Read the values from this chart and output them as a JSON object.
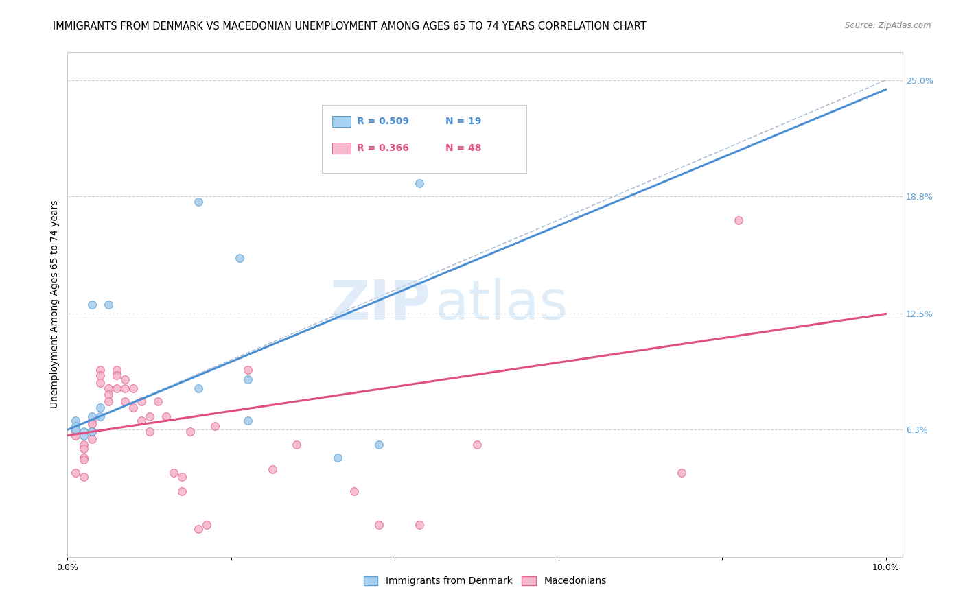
{
  "title": "IMMIGRANTS FROM DENMARK VS MACEDONIAN UNEMPLOYMENT AMONG AGES 65 TO 74 YEARS CORRELATION CHART",
  "source": "Source: ZipAtlas.com",
  "ylabel": "Unemployment Among Ages 65 to 74 years",
  "xlim": [
    0.0,
    0.102
  ],
  "ylim": [
    -0.005,
    0.265
  ],
  "xticks": [
    0.0,
    0.02,
    0.04,
    0.06,
    0.08,
    0.1
  ],
  "xticklabels": [
    "0.0%",
    "",
    "",
    "",
    "",
    "10.0%"
  ],
  "ytick_labels_right": [
    "25.0%",
    "18.8%",
    "12.5%",
    "6.3%"
  ],
  "ytick_values_right": [
    0.25,
    0.188,
    0.125,
    0.063
  ],
  "legend_blue_r": "0.509",
  "legend_blue_n": "19",
  "legend_pink_r": "0.366",
  "legend_pink_n": "48",
  "blue_scatter_x": [
    0.005,
    0.016,
    0.021,
    0.022,
    0.016,
    0.003,
    0.004,
    0.004,
    0.001,
    0.001,
    0.001,
    0.002,
    0.002,
    0.038,
    0.033,
    0.022,
    0.003,
    0.003,
    0.043
  ],
  "blue_scatter_y": [
    0.13,
    0.185,
    0.155,
    0.09,
    0.085,
    0.13,
    0.075,
    0.07,
    0.068,
    0.065,
    0.063,
    0.062,
    0.06,
    0.055,
    0.048,
    0.068,
    0.062,
    0.07,
    0.195
  ],
  "pink_scatter_x": [
    0.001,
    0.001,
    0.001,
    0.002,
    0.002,
    0.002,
    0.002,
    0.002,
    0.003,
    0.003,
    0.003,
    0.003,
    0.004,
    0.004,
    0.004,
    0.005,
    0.005,
    0.005,
    0.006,
    0.006,
    0.006,
    0.007,
    0.007,
    0.007,
    0.008,
    0.008,
    0.009,
    0.009,
    0.01,
    0.01,
    0.011,
    0.012,
    0.013,
    0.014,
    0.014,
    0.015,
    0.016,
    0.017,
    0.018,
    0.022,
    0.025,
    0.028,
    0.035,
    0.038,
    0.043,
    0.05,
    0.075,
    0.082
  ],
  "pink_scatter_y": [
    0.062,
    0.06,
    0.04,
    0.055,
    0.053,
    0.048,
    0.047,
    0.038,
    0.068,
    0.066,
    0.062,
    0.058,
    0.095,
    0.092,
    0.088,
    0.085,
    0.082,
    0.078,
    0.095,
    0.092,
    0.085,
    0.09,
    0.085,
    0.078,
    0.085,
    0.075,
    0.078,
    0.068,
    0.07,
    0.062,
    0.078,
    0.07,
    0.04,
    0.038,
    0.03,
    0.062,
    0.01,
    0.012,
    0.065,
    0.095,
    0.042,
    0.055,
    0.03,
    0.012,
    0.012,
    0.055,
    0.04,
    0.175
  ],
  "blue_line_x": [
    0.0,
    0.1
  ],
  "blue_line_y": [
    0.063,
    0.245
  ],
  "pink_line_x": [
    0.0,
    0.1
  ],
  "pink_line_y": [
    0.06,
    0.125
  ],
  "dashed_line_x": [
    0.0,
    0.1
  ],
  "dashed_line_y": [
    0.063,
    0.25
  ],
  "watermark_zip": "ZIP",
  "watermark_atlas": "atlas",
  "background_color": "#ffffff",
  "blue_color": "#a8d0ef",
  "pink_color": "#f7b8cc",
  "blue_edge_color": "#5a9fd4",
  "pink_edge_color": "#e06090",
  "blue_line_color": "#4a8fd4",
  "pink_line_color": "#e05080",
  "dashed_line_color": "#b0c0d8",
  "right_tick_color": "#5a9fd4",
  "title_fontsize": 10.5,
  "axis_label_fontsize": 10,
  "tick_fontsize": 9,
  "scatter_size": 70,
  "grid_color": "#d0d0d0"
}
